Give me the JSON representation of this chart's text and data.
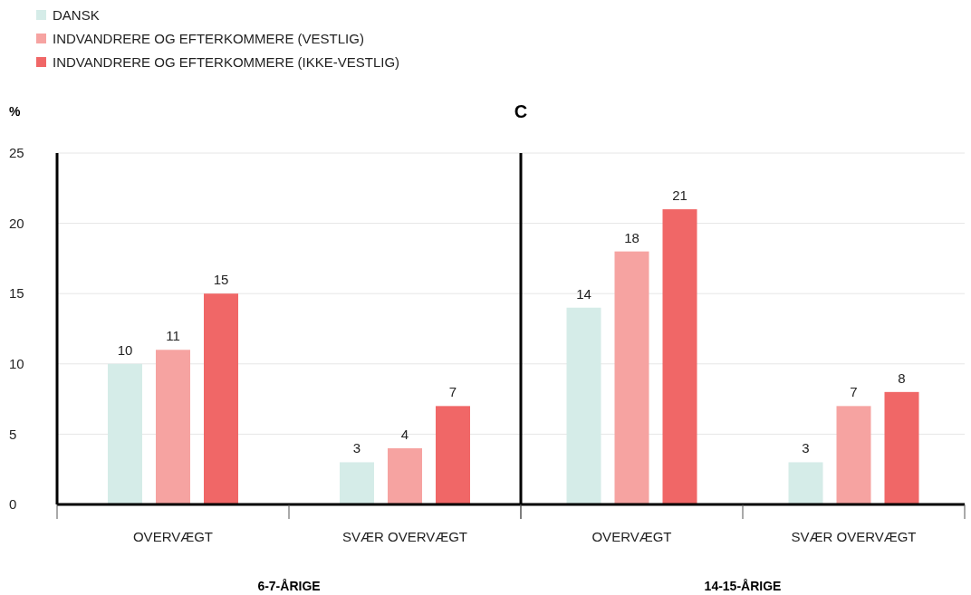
{
  "chart_data": [
    {
      "type": "bar",
      "title": "C",
      "ylabel": "%",
      "xlabel": "6-7-ÅRIGE",
      "categories": [
        "OVERVÆGT",
        "SVÆR OVERVÆGT"
      ],
      "series": [
        {
          "name": "DANSK",
          "color": "#d5ece8",
          "values": [
            10,
            3
          ]
        },
        {
          "name": "INDVANDRERE OG EFTERKOMMERE (VESTLIG)",
          "color": "#f6a3a1",
          "values": [
            11,
            4
          ]
        },
        {
          "name": "INDVANDRERE OG EFTERKOMMERE (IKKE-VESTLIG)",
          "color": "#f06767",
          "values": [
            15,
            7
          ]
        }
      ],
      "ylim": [
        0,
        25
      ],
      "yticks": [
        0,
        5,
        10,
        15,
        20,
        25
      ],
      "grid": "y",
      "data_labels": true,
      "legend": "top left"
    },
    {
      "type": "bar",
      "xlabel": "14-15-ÅRIGE",
      "categories": [
        "OVERVÆGT",
        "SVÆR OVERVÆGT"
      ],
      "series": [
        {
          "color": "#d5ece8",
          "values": [
            14,
            3
          ]
        },
        {
          "color": "#f6a3a1",
          "values": [
            18,
            7
          ]
        },
        {
          "color": "#f06767",
          "values": [
            21,
            8
          ]
        }
      ],
      "ylim": [
        0,
        25
      ],
      "yticks": [
        0,
        5,
        10,
        15,
        20,
        25
      ],
      "grid": "y",
      "data_labels": true,
      "tick_labels": "x"
    }
  ]
}
